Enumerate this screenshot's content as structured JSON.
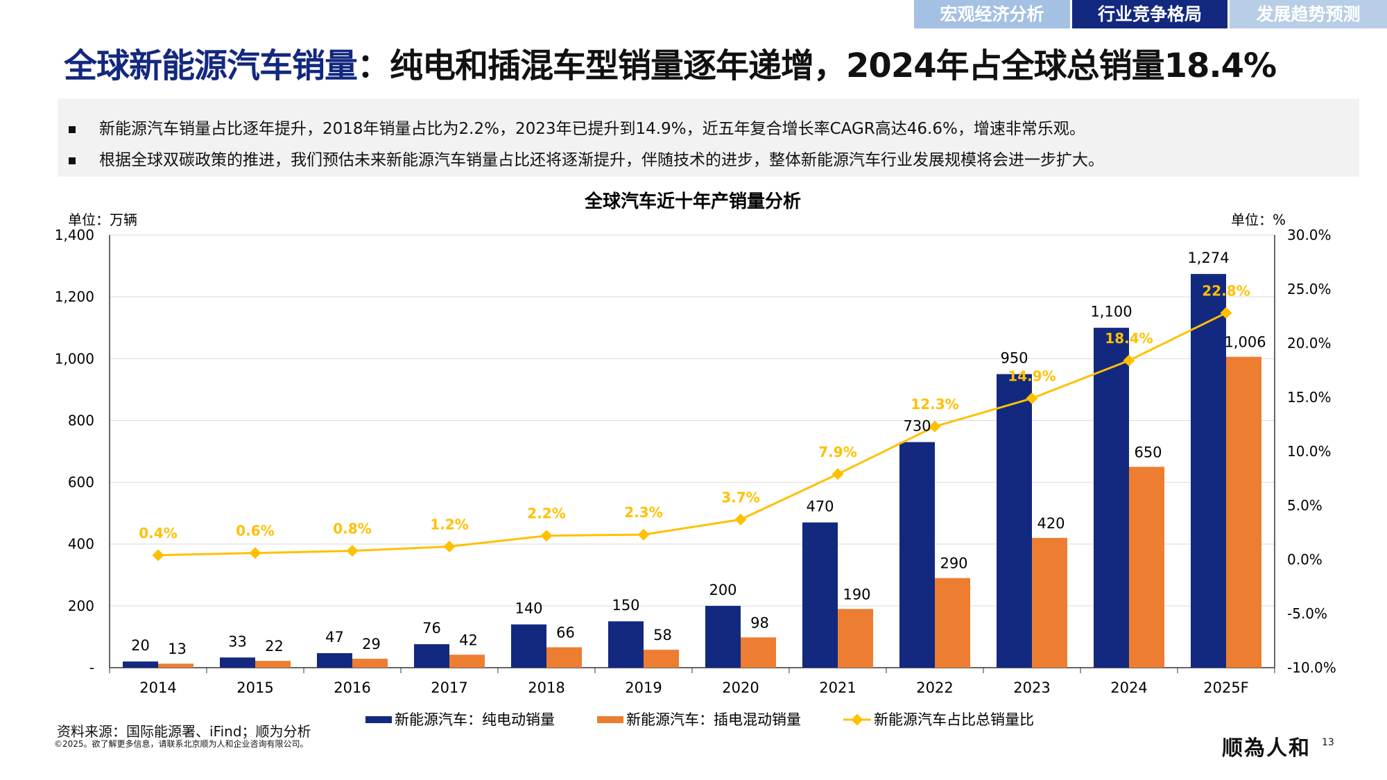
{
  "nav_tabs": [
    {
      "label": "宏观经济分析",
      "active": false
    },
    {
      "label": "行业竞争格局",
      "active": true
    },
    {
      "label": "发展趋势预测",
      "active": false
    }
  ],
  "header": {
    "title_highlight": "全球新能源汽车销量",
    "title_rest": "：纯电和插混车型销量逐年递增，2024年占全球总销量18.4%"
  },
  "summary": {
    "bullets": [
      "新能源汽车销量占比逐年提升，2018年销量占比为2.2%，2023年已提升到14.9%，近五年复合增长率CAGR高达46.6%，增速非常乐观。",
      "根据全球双碳政策的推进，我们预估未来新能源汽车销量占比还将逐渐提升，伴随技术的进步，整体新能源汽车行业发展规模将会进一步扩大。"
    ]
  },
  "chart_data": {
    "type": "bar+line",
    "title": "全球汽车近十年产销量分析",
    "ylabel_left": "单位：万辆",
    "ylabel_right": "单位：%",
    "categories": [
      "2014",
      "2015",
      "2016",
      "2017",
      "2018",
      "2019",
      "2020",
      "2021",
      "2022",
      "2023",
      "2024",
      "2025F"
    ],
    "ylim_left": [
      0,
      1400
    ],
    "yticks_left": [
      "-",
      "200",
      "400",
      "600",
      "800",
      "1,000",
      "1,200",
      "1,400"
    ],
    "ylim_right": [
      -10,
      30
    ],
    "yticks_right": [
      "-10.0%",
      "-5.0%",
      "0.0%",
      "5.0%",
      "10.0%",
      "15.0%",
      "20.0%",
      "25.0%",
      "30.0%"
    ],
    "grid": true,
    "legend_position": "bottom",
    "series": [
      {
        "name": "新能源汽车：纯电动销量",
        "type": "bar",
        "axis": "left",
        "color": "#13287f",
        "values": [
          20,
          33,
          47,
          76,
          140,
          150,
          200,
          470,
          730,
          950,
          1100,
          1274
        ],
        "labels": [
          "20",
          "33",
          "47",
          "76",
          "140",
          "150",
          "200",
          "470",
          "730",
          "950",
          "1,100",
          "1,274"
        ]
      },
      {
        "name": "新能源汽车：插电混动销量",
        "type": "bar",
        "axis": "left",
        "color": "#ed7d31",
        "values": [
          13,
          22,
          29,
          42,
          66,
          58,
          98,
          190,
          290,
          420,
          650,
          1006
        ],
        "labels": [
          "13",
          "22",
          "29",
          "42",
          "66",
          "58",
          "98",
          "190",
          "290",
          "420",
          "650",
          "1,006"
        ]
      },
      {
        "name": "新能源汽车占比总销量比",
        "type": "line",
        "axis": "right",
        "color": "#ffc000",
        "values": [
          0.4,
          0.6,
          0.8,
          1.2,
          2.2,
          2.3,
          3.7,
          7.9,
          12.3,
          14.9,
          18.4,
          22.8
        ],
        "labels": [
          "0.4%",
          "0.6%",
          "0.8%",
          "1.2%",
          "2.2%",
          "2.3%",
          "3.7%",
          "7.9%",
          "12.3%",
          "14.9%",
          "18.4%",
          "22.8%"
        ]
      }
    ]
  },
  "footer": {
    "source": "资料来源：国际能源署、iFind；顺为分析",
    "copyright": "©2025。欲了解更多信息，请联系北京顺为人和企业咨询有限公司。",
    "logo": "顺為人和",
    "page": "13"
  },
  "colors": {
    "brand": "#13287f",
    "tab_inactive": "#a9c4e4",
    "summary_bg": "#f2f2f2"
  }
}
